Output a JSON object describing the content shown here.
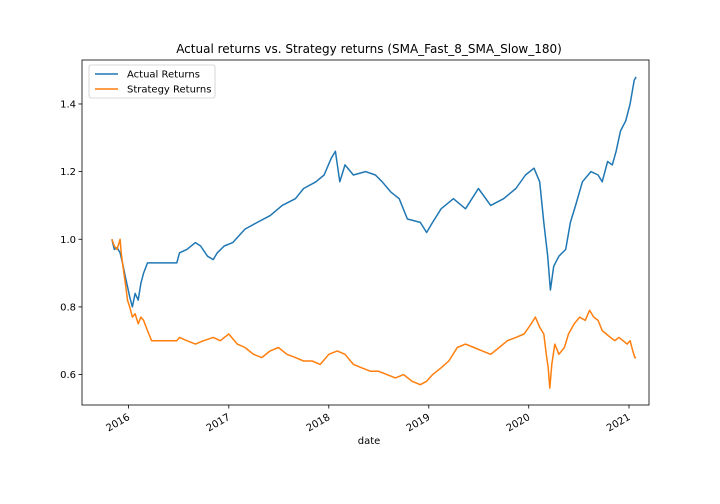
{
  "chart_data": {
    "type": "line",
    "title": "Actual returns vs. Strategy returns (SMA_Fast_8_SMA_Slow_180)",
    "xlabel": "date",
    "ylabel": "",
    "x_type": "date",
    "xlim": [
      "2015-07-15",
      "2021-03-15"
    ],
    "ylim": [
      0.51,
      1.53
    ],
    "yticks": [
      0.6,
      0.8,
      1.0,
      1.2,
      1.4
    ],
    "ytick_labels": [
      "0.6",
      "0.8",
      "1.0",
      "1.2",
      "1.4"
    ],
    "xticks": [
      "2016-01-01",
      "2017-01-01",
      "2018-01-01",
      "2019-01-01",
      "2020-01-01",
      "2021-01-01"
    ],
    "xtick_labels": [
      "2016",
      "2017",
      "2018",
      "2019",
      "2020",
      "2021"
    ],
    "grid": false,
    "legend_position": "upper-left",
    "series": [
      {
        "name": "Actual Returns",
        "color": "#1f77b4",
        "points": [
          [
            "2015-11-01",
            1.0
          ],
          [
            "2015-11-10",
            0.97
          ],
          [
            "2015-11-20",
            0.975
          ],
          [
            "2015-12-01",
            0.96
          ],
          [
            "2015-12-10",
            0.93
          ],
          [
            "2015-12-20",
            0.89
          ],
          [
            "2015-12-28",
            0.86
          ],
          [
            "2016-01-05",
            0.83
          ],
          [
            "2016-01-15",
            0.8
          ],
          [
            "2016-01-25",
            0.84
          ],
          [
            "2016-02-05",
            0.82
          ],
          [
            "2016-02-15",
            0.87
          ],
          [
            "2016-02-25",
            0.9
          ],
          [
            "2016-03-10",
            0.93
          ],
          [
            "2016-03-25",
            0.93
          ],
          [
            "2016-06-25",
            0.93
          ],
          [
            "2016-07-05",
            0.96
          ],
          [
            "2016-08-01",
            0.97
          ],
          [
            "2016-09-01",
            0.99
          ],
          [
            "2016-09-20",
            0.98
          ],
          [
            "2016-10-15",
            0.95
          ],
          [
            "2016-11-05",
            0.94
          ],
          [
            "2016-11-20",
            0.96
          ],
          [
            "2016-12-15",
            0.98
          ],
          [
            "2017-01-15",
            0.99
          ],
          [
            "2017-03-01",
            1.03
          ],
          [
            "2017-04-15",
            1.05
          ],
          [
            "2017-06-01",
            1.07
          ],
          [
            "2017-07-15",
            1.1
          ],
          [
            "2017-09-01",
            1.12
          ],
          [
            "2017-10-01",
            1.15
          ],
          [
            "2017-11-15",
            1.17
          ],
          [
            "2017-12-15",
            1.19
          ],
          [
            "2018-01-10",
            1.24
          ],
          [
            "2018-01-25",
            1.26
          ],
          [
            "2018-02-10",
            1.17
          ],
          [
            "2018-03-01",
            1.22
          ],
          [
            "2018-04-01",
            1.19
          ],
          [
            "2018-05-15",
            1.2
          ],
          [
            "2018-06-20",
            1.19
          ],
          [
            "2018-07-15",
            1.17
          ],
          [
            "2018-08-15",
            1.14
          ],
          [
            "2018-09-15",
            1.12
          ],
          [
            "2018-10-15",
            1.06
          ],
          [
            "2018-12-01",
            1.05
          ],
          [
            "2018-12-24",
            1.02
          ],
          [
            "2019-01-15",
            1.05
          ],
          [
            "2019-02-15",
            1.09
          ],
          [
            "2019-04-01",
            1.12
          ],
          [
            "2019-05-15",
            1.09
          ],
          [
            "2019-07-01",
            1.15
          ],
          [
            "2019-08-15",
            1.1
          ],
          [
            "2019-10-01",
            1.12
          ],
          [
            "2019-11-15",
            1.15
          ],
          [
            "2019-12-20",
            1.19
          ],
          [
            "2020-01-20",
            1.21
          ],
          [
            "2020-02-10",
            1.17
          ],
          [
            "2020-02-25",
            1.05
          ],
          [
            "2020-03-10",
            0.95
          ],
          [
            "2020-03-20",
            0.85
          ],
          [
            "2020-04-01",
            0.92
          ],
          [
            "2020-04-20",
            0.95
          ],
          [
            "2020-05-15",
            0.97
          ],
          [
            "2020-06-01",
            1.05
          ],
          [
            "2020-06-20",
            1.1
          ],
          [
            "2020-07-15",
            1.17
          ],
          [
            "2020-08-15",
            1.2
          ],
          [
            "2020-09-10",
            1.19
          ],
          [
            "2020-09-25",
            1.17
          ],
          [
            "2020-10-15",
            1.23
          ],
          [
            "2020-11-01",
            1.22
          ],
          [
            "2020-11-15",
            1.26
          ],
          [
            "2020-12-01",
            1.32
          ],
          [
            "2020-12-20",
            1.35
          ],
          [
            "2021-01-05",
            1.4
          ],
          [
            "2021-01-20",
            1.47
          ],
          [
            "2021-01-27",
            1.48
          ]
        ]
      },
      {
        "name": "Strategy Returns",
        "color": "#ff7f0e",
        "points": [
          [
            "2015-11-01",
            1.0
          ],
          [
            "2015-11-10",
            0.98
          ],
          [
            "2015-11-20",
            0.97
          ],
          [
            "2015-12-01",
            1.0
          ],
          [
            "2015-12-05",
            0.96
          ],
          [
            "2015-12-10",
            0.93
          ],
          [
            "2015-12-15",
            0.9
          ],
          [
            "2015-12-22",
            0.86
          ],
          [
            "2015-12-28",
            0.82
          ],
          [
            "2016-01-05",
            0.8
          ],
          [
            "2016-01-15",
            0.77
          ],
          [
            "2016-01-25",
            0.78
          ],
          [
            "2016-02-05",
            0.75
          ],
          [
            "2016-02-15",
            0.77
          ],
          [
            "2016-02-25",
            0.76
          ],
          [
            "2016-03-10",
            0.73
          ],
          [
            "2016-03-25",
            0.7
          ],
          [
            "2016-06-25",
            0.7
          ],
          [
            "2016-07-05",
            0.71
          ],
          [
            "2016-08-01",
            0.7
          ],
          [
            "2016-09-01",
            0.69
          ],
          [
            "2016-10-01",
            0.7
          ],
          [
            "2016-11-05",
            0.71
          ],
          [
            "2016-12-01",
            0.7
          ],
          [
            "2017-01-01",
            0.72
          ],
          [
            "2017-02-01",
            0.69
          ],
          [
            "2017-03-01",
            0.68
          ],
          [
            "2017-04-01",
            0.66
          ],
          [
            "2017-05-01",
            0.65
          ],
          [
            "2017-06-01",
            0.67
          ],
          [
            "2017-07-01",
            0.68
          ],
          [
            "2017-08-01",
            0.66
          ],
          [
            "2017-09-01",
            0.65
          ],
          [
            "2017-10-01",
            0.64
          ],
          [
            "2017-11-01",
            0.64
          ],
          [
            "2017-12-01",
            0.63
          ],
          [
            "2018-01-01",
            0.66
          ],
          [
            "2018-02-01",
            0.67
          ],
          [
            "2018-03-01",
            0.66
          ],
          [
            "2018-04-01",
            0.63
          ],
          [
            "2018-05-01",
            0.62
          ],
          [
            "2018-06-01",
            0.61
          ],
          [
            "2018-07-01",
            0.61
          ],
          [
            "2018-08-01",
            0.6
          ],
          [
            "2018-09-01",
            0.59
          ],
          [
            "2018-10-01",
            0.6
          ],
          [
            "2018-11-01",
            0.58
          ],
          [
            "2018-12-01",
            0.57
          ],
          [
            "2018-12-24",
            0.58
          ],
          [
            "2019-01-15",
            0.6
          ],
          [
            "2019-02-15",
            0.62
          ],
          [
            "2019-03-15",
            0.64
          ],
          [
            "2019-04-15",
            0.68
          ],
          [
            "2019-05-15",
            0.69
          ],
          [
            "2019-06-15",
            0.68
          ],
          [
            "2019-07-15",
            0.67
          ],
          [
            "2019-08-15",
            0.66
          ],
          [
            "2019-09-15",
            0.68
          ],
          [
            "2019-10-15",
            0.7
          ],
          [
            "2019-11-15",
            0.71
          ],
          [
            "2019-12-15",
            0.72
          ],
          [
            "2020-01-10",
            0.75
          ],
          [
            "2020-01-25",
            0.77
          ],
          [
            "2020-02-10",
            0.74
          ],
          [
            "2020-02-25",
            0.72
          ],
          [
            "2020-03-05",
            0.66
          ],
          [
            "2020-03-12",
            0.62
          ],
          [
            "2020-03-18",
            0.56
          ],
          [
            "2020-03-25",
            0.63
          ],
          [
            "2020-04-05",
            0.69
          ],
          [
            "2020-04-20",
            0.66
          ],
          [
            "2020-05-10",
            0.68
          ],
          [
            "2020-05-25",
            0.72
          ],
          [
            "2020-06-15",
            0.75
          ],
          [
            "2020-07-05",
            0.77
          ],
          [
            "2020-07-25",
            0.76
          ],
          [
            "2020-08-10",
            0.79
          ],
          [
            "2020-08-25",
            0.77
          ],
          [
            "2020-09-10",
            0.76
          ],
          [
            "2020-09-25",
            0.73
          ],
          [
            "2020-10-10",
            0.72
          ],
          [
            "2020-10-25",
            0.71
          ],
          [
            "2020-11-10",
            0.7
          ],
          [
            "2020-11-25",
            0.71
          ],
          [
            "2020-12-10",
            0.7
          ],
          [
            "2020-12-25",
            0.69
          ],
          [
            "2021-01-05",
            0.7
          ],
          [
            "2021-01-15",
            0.67
          ],
          [
            "2021-01-22",
            0.65
          ],
          [
            "2021-01-27",
            0.65
          ]
        ]
      }
    ]
  }
}
